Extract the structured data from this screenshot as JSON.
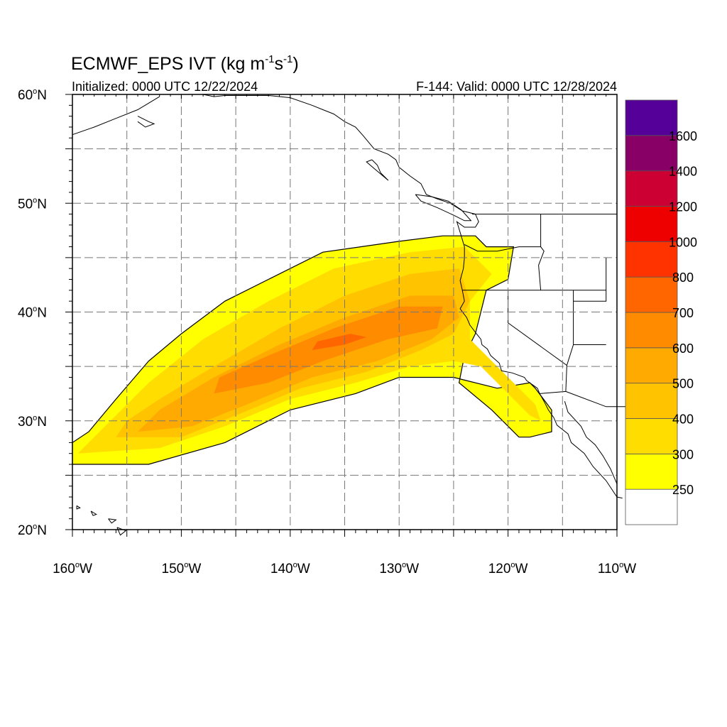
{
  "title": {
    "main": "ECMWF_EPS IVT (kg m",
    "exp1": "-1",
    "mid": "s",
    "exp2": "-1",
    "close": ")"
  },
  "subtitle": {
    "left": "Initialized: 0000 UTC 12/22/2024",
    "right": "F-144: Valid: 0000 UTC 12/28/2024"
  },
  "axes": {
    "lon_range": [
      -160,
      -110
    ],
    "lat_range": [
      20,
      60
    ],
    "lon_ticks": [
      {
        "lon": -160,
        "label": "160",
        "hemi": "W"
      },
      {
        "lon": -150,
        "label": "150",
        "hemi": "W"
      },
      {
        "lon": -140,
        "label": "140",
        "hemi": "W"
      },
      {
        "lon": -130,
        "label": "130",
        "hemi": "W"
      },
      {
        "lon": -120,
        "label": "120",
        "hemi": "W"
      },
      {
        "lon": -110,
        "label": "110",
        "hemi": "W"
      }
    ],
    "lat_ticks": [
      {
        "lat": 60,
        "label": "60",
        "hemi": "N"
      },
      {
        "lat": 50,
        "label": "50",
        "hemi": "N"
      },
      {
        "lat": 40,
        "label": "40",
        "hemi": "N"
      },
      {
        "lat": 30,
        "label": "30",
        "hemi": "N"
      },
      {
        "lat": 20,
        "label": "20",
        "hemi": "N"
      }
    ],
    "gridlines": "dashed every 5 degrees"
  },
  "colorbar": {
    "labels": [
      "250",
      "300",
      "400",
      "500",
      "600",
      "700",
      "800",
      "1000",
      "1200",
      "1400",
      "1600"
    ],
    "colors": [
      "#ffffff",
      "#ffff00",
      "#ffdd00",
      "#ffc300",
      "#ffaa00",
      "#ff8c00",
      "#ff6600",
      "#ff3300",
      "#ee0000",
      "#cc0033",
      "#880066",
      "#550099"
    ]
  },
  "chart_data": {
    "type": "heatmap",
    "variable": "IVT",
    "units": "kg m-1 s-1",
    "levels": [
      250,
      300,
      400,
      500,
      600,
      700,
      800,
      1000,
      1200,
      1400,
      1600
    ],
    "plume_outline_lonlat": [
      [
        -160,
        26
      ],
      [
        -153,
        26
      ],
      [
        -146,
        28
      ],
      [
        -140,
        31
      ],
      [
        -134,
        32.5
      ],
      [
        -130,
        34
      ],
      [
        -125,
        34
      ],
      [
        -121,
        33
      ],
      [
        -118,
        33.5
      ],
      [
        -117.5,
        33
      ],
      [
        -116,
        31
      ],
      [
        -116,
        29
      ],
      [
        -118,
        28.5
      ],
      [
        -119,
        28.5
      ],
      [
        -121.5,
        31
      ],
      [
        -124.5,
        33.5
      ],
      [
        -124,
        36
      ],
      [
        -123,
        38
      ],
      [
        -122.5,
        40
      ],
      [
        -122,
        42
      ],
      [
        -120,
        43
      ],
      [
        -119.5,
        46
      ],
      [
        -122,
        46
      ],
      [
        -123,
        47
      ],
      [
        -126,
        47
      ],
      [
        -130,
        46.5
      ],
      [
        -137,
        45.5
      ],
      [
        -142,
        43
      ],
      [
        -146,
        41
      ],
      [
        -150,
        38
      ],
      [
        -153,
        35.5
      ],
      [
        -156,
        32
      ],
      [
        -158.5,
        29
      ],
      [
        -160,
        28
      ]
    ],
    "core_band_300": [
      [
        -159.5,
        27
      ],
      [
        -152,
        27.5
      ],
      [
        -146,
        29.5
      ],
      [
        -140,
        32
      ],
      [
        -134,
        33.5
      ],
      [
        -129,
        35
      ],
      [
        -125,
        35.5
      ],
      [
        -122.5,
        35
      ],
      [
        -121,
        33.5
      ],
      [
        -118,
        30.5
      ],
      [
        -117,
        30
      ],
      [
        -117.5,
        31.5
      ],
      [
        -120,
        34
      ],
      [
        -123.5,
        37.5
      ],
      [
        -123.5,
        41
      ],
      [
        -121.5,
        43.5
      ],
      [
        -124,
        46
      ],
      [
        -129,
        45.5
      ],
      [
        -136,
        44
      ],
      [
        -142,
        41
      ],
      [
        -148,
        37.5
      ],
      [
        -153,
        33.5
      ],
      [
        -157,
        29.5
      ]
    ],
    "core_band_400": [
      [
        -156,
        28.5
      ],
      [
        -150,
        28.5
      ],
      [
        -145,
        30.5
      ],
      [
        -139,
        33
      ],
      [
        -133,
        34.5
      ],
      [
        -128,
        36.5
      ],
      [
        -125,
        38
      ],
      [
        -123.5,
        41
      ],
      [
        -124.5,
        44
      ],
      [
        -129,
        43.5
      ],
      [
        -135,
        41.5
      ],
      [
        -141,
        38.5
      ],
      [
        -147,
        35
      ],
      [
        -152,
        32
      ],
      [
        -155,
        30
      ]
    ],
    "core_band_500": [
      [
        -154,
        29
      ],
      [
        -149,
        29.5
      ],
      [
        -144,
        31.5
      ],
      [
        -138,
        34
      ],
      [
        -132,
        35.5
      ],
      [
        -127,
        37.5
      ],
      [
        -124.5,
        39.5
      ],
      [
        -125,
        41.5
      ],
      [
        -129,
        41.5
      ],
      [
        -135,
        39.5
      ],
      [
        -141,
        37
      ],
      [
        -147,
        34
      ],
      [
        -152,
        31
      ]
    ],
    "core_band_600": [
      [
        -147,
        32.5
      ],
      [
        -142,
        33.5
      ],
      [
        -137,
        35.5
      ],
      [
        -131,
        37.5
      ],
      [
        -126.5,
        38.5
      ],
      [
        -126,
        40.5
      ],
      [
        -130,
        40.5
      ],
      [
        -136,
        38.5
      ],
      [
        -142,
        36
      ],
      [
        -146.5,
        34
      ]
    ],
    "core_band_700": [
      [
        -138,
        36.5
      ],
      [
        -135,
        37
      ],
      [
        -133,
        37.7
      ],
      [
        -134.5,
        38
      ],
      [
        -137.5,
        37.3
      ]
    ]
  },
  "region_labels": {
    "map": "map-plot",
    "colorbar": "colorbar"
  }
}
